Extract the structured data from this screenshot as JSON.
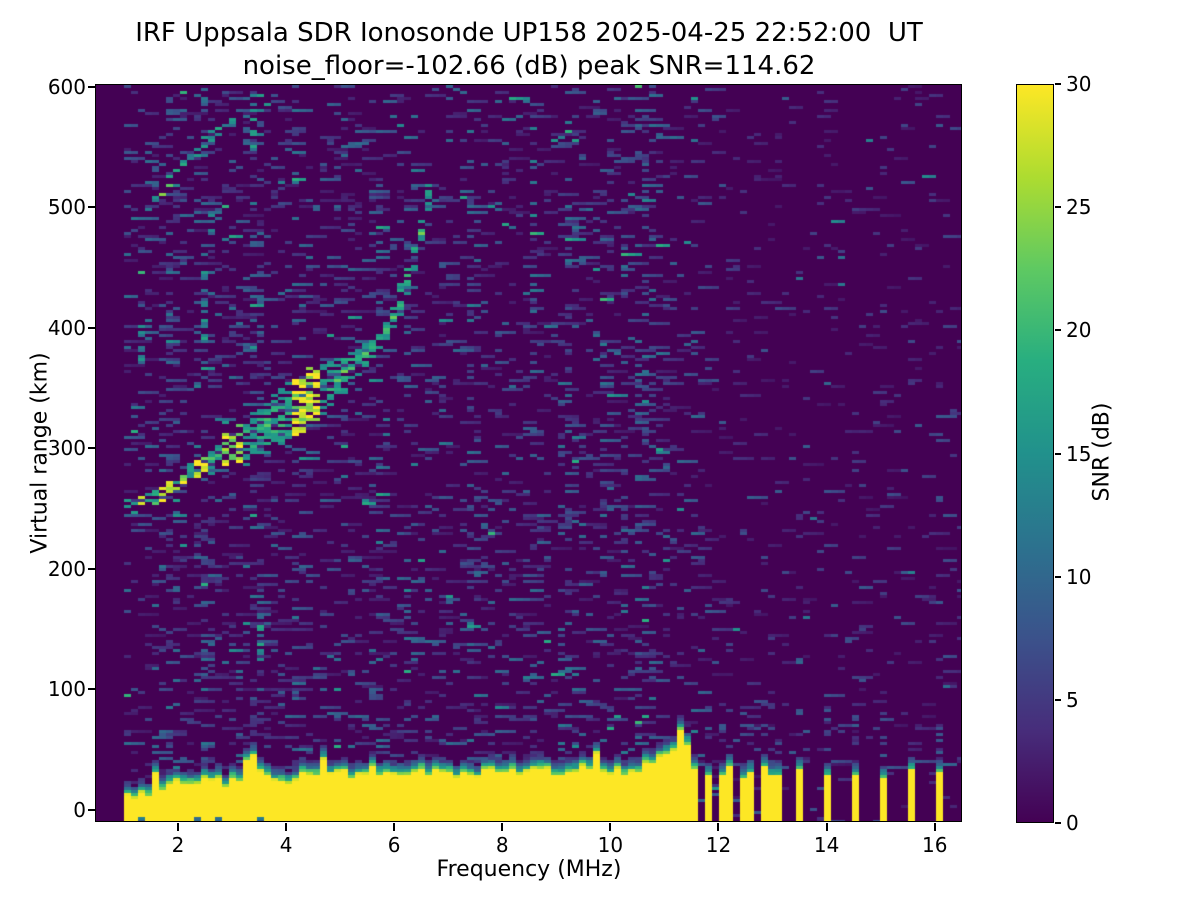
{
  "chart_data": {
    "type": "heatmap",
    "title": "IRF Uppsala SDR Ionosonde UP158 2025-04-25 22:52:00  UT",
    "subtitle": "noise_floor=-102.66 (dB) peak SNR=114.62",
    "station_id": "UP158",
    "datetime_ut": "2025-04-25 22:52:00",
    "noise_floor_db": -102.66,
    "peak_snr_db": 114.62,
    "xlabel": "Frequency (MHz)",
    "ylabel": "Virtual range (km)",
    "xlim": [
      0.4835,
      16.505
    ],
    "ylim": [
      -10.2,
      601.5
    ],
    "xticks": [
      2,
      4,
      6,
      8,
      10,
      12,
      14,
      16
    ],
    "yticks": [
      0,
      100,
      200,
      300,
      400,
      500,
      600
    ],
    "grid": false,
    "colorbar": {
      "label": "SNR (dB)",
      "min": 0,
      "max": 30,
      "ticks": [
        0,
        5,
        10,
        15,
        20,
        25,
        30
      ]
    },
    "colormap": {
      "name": "viridis",
      "stops": [
        "#440154",
        "#472d7b",
        "#3b528b",
        "#2c728e",
        "#21918c",
        "#28ae80",
        "#5ec962",
        "#addc30",
        "#fde725"
      ]
    },
    "background_color": "#440154",
    "f_layer_trace": [
      [
        1.05,
        251
      ],
      [
        1.3,
        253
      ],
      [
        1.6,
        258
      ],
      [
        1.85,
        267
      ],
      [
        2.1,
        274
      ],
      [
        2.35,
        282
      ],
      [
        2.6,
        289
      ],
      [
        2.85,
        297
      ],
      [
        3.1,
        301
      ],
      [
        3.35,
        306
      ],
      [
        3.6,
        315
      ],
      [
        3.85,
        322
      ],
      [
        4.1,
        331
      ],
      [
        4.35,
        338
      ],
      [
        4.6,
        346
      ],
      [
        4.85,
        353
      ],
      [
        5.1,
        361
      ],
      [
        5.35,
        371
      ],
      [
        5.6,
        383
      ],
      [
        5.85,
        397
      ],
      [
        6.05,
        413
      ],
      [
        6.2,
        431
      ],
      [
        6.35,
        453
      ],
      [
        6.5,
        479
      ],
      [
        6.6,
        500
      ],
      [
        6.68,
        518
      ]
    ],
    "f_layer_thickness_km": [
      [
        1.05,
        6
      ],
      [
        2.0,
        12
      ],
      [
        2.6,
        18
      ],
      [
        3.1,
        28
      ],
      [
        3.6,
        40
      ],
      [
        4.1,
        48
      ],
      [
        4.6,
        42
      ],
      [
        5.0,
        28
      ],
      [
        5.5,
        18
      ],
      [
        6.0,
        18
      ],
      [
        6.68,
        22
      ]
    ],
    "f_layer_bright_segments": [
      [
        1.25,
        1.45
      ],
      [
        1.7,
        2.2
      ],
      [
        2.25,
        2.6
      ],
      [
        2.85,
        3.15
      ],
      [
        4.05,
        4.35
      ],
      [
        4.4,
        4.65
      ]
    ],
    "second_hop_trace": [
      [
        1.45,
        497
      ],
      [
        1.65,
        510
      ],
      [
        1.85,
        521
      ],
      [
        2.05,
        532
      ],
      [
        2.3,
        544
      ],
      [
        2.55,
        555
      ],
      [
        2.8,
        564
      ],
      [
        3.05,
        571
      ],
      [
        3.3,
        576
      ],
      [
        3.55,
        581
      ],
      [
        3.8,
        586
      ]
    ],
    "second_hop_bright_segments": [
      [
        1.6,
        2.05
      ]
    ],
    "spread_echo_blobs": [
      [
        2.5,
        385,
        445,
        0.55
      ],
      [
        1.35,
        372,
        400,
        0.5
      ],
      [
        3.45,
        545,
        592,
        0.45
      ],
      [
        2.62,
        480,
        500,
        0.4
      ],
      [
        3.5,
        125,
        162,
        0.5
      ]
    ],
    "ground_band": {
      "f_start": 1.0,
      "f_end": 11.65,
      "base_km": -10,
      "top_km_profile": [
        [
          1.0,
          6
        ],
        [
          1.3,
          12
        ],
        [
          1.7,
          17
        ],
        [
          2.0,
          21
        ],
        [
          2.4,
          24
        ],
        [
          2.8,
          22
        ],
        [
          3.2,
          27
        ],
        [
          3.6,
          29
        ],
        [
          4.0,
          26
        ],
        [
          4.4,
          31
        ],
        [
          4.8,
          28
        ],
        [
          5.2,
          30
        ],
        [
          5.6,
          33
        ],
        [
          6.0,
          30
        ],
        [
          6.4,
          35
        ],
        [
          6.8,
          30
        ],
        [
          7.2,
          32
        ],
        [
          7.6,
          30
        ],
        [
          8.0,
          33
        ],
        [
          8.4,
          30
        ],
        [
          8.8,
          35
        ],
        [
          9.2,
          32
        ],
        [
          9.6,
          34
        ],
        [
          10.0,
          32
        ],
        [
          10.4,
          33
        ],
        [
          10.7,
          38
        ],
        [
          11.0,
          45
        ],
        [
          11.2,
          47
        ],
        [
          11.4,
          42
        ],
        [
          11.55,
          32
        ],
        [
          11.65,
          22
        ]
      ],
      "gap_frequencies": [
        1.35,
        2.3,
        2.75,
        3.5
      ]
    },
    "tx_stripe_frequencies": [
      11.78,
      12.02,
      12.24,
      12.43,
      12.61,
      12.79,
      12.97,
      13.15,
      13.5,
      14.0,
      14.5,
      15.0,
      15.52,
      16.05
    ],
    "rfi_columns": [
      {
        "f": 1.85,
        "s": 1.8
      },
      {
        "f": 2.5,
        "s": 2.2
      },
      {
        "f": 3.4,
        "s": 1.9
      },
      {
        "f": 4.15,
        "s": 1.7
      },
      {
        "f": 5.05,
        "s": 1.6
      },
      {
        "f": 5.75,
        "s": 1.9
      },
      {
        "f": 6.3,
        "s": 1.7
      },
      {
        "f": 6.9,
        "s": 1.5
      },
      {
        "f": 7.35,
        "s": 2.0
      },
      {
        "f": 7.5,
        "s": 1.6
      },
      {
        "f": 8.05,
        "s": 1.5
      },
      {
        "f": 8.55,
        "s": 1.8
      },
      {
        "f": 9.2,
        "s": 2.4
      },
      {
        "f": 9.9,
        "s": 1.7
      },
      {
        "f": 10.2,
        "s": 1.8
      },
      {
        "f": 10.65,
        "s": 2.6
      },
      {
        "f": 11.1,
        "s": 1.6
      },
      {
        "f": 12.02,
        "s": 1.5
      },
      {
        "f": 12.43,
        "s": 1.5
      },
      {
        "f": 12.79,
        "s": 1.5
      },
      {
        "f": 13.15,
        "s": 1.4
      },
      {
        "f": 13.5,
        "s": 1.5
      },
      {
        "f": 14.0,
        "s": 1.5
      },
      {
        "f": 14.5,
        "s": 1.4
      },
      {
        "f": 15.0,
        "s": 1.4
      },
      {
        "f": 15.52,
        "s": 1.3
      },
      {
        "f": 16.05,
        "s": 1.4
      }
    ]
  }
}
